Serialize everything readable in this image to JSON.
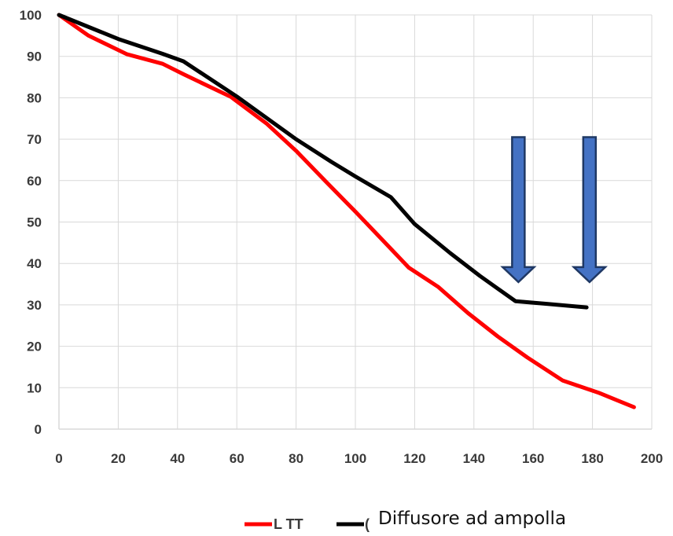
{
  "chart_data": {
    "type": "line",
    "title": "",
    "xlabel": "",
    "ylabel": "",
    "xlim": [
      0,
      200
    ],
    "ylim": [
      0,
      100
    ],
    "x_ticks": [
      0,
      20,
      40,
      60,
      80,
      100,
      120,
      140,
      160,
      180,
      200
    ],
    "y_ticks": [
      0,
      10,
      20,
      30,
      40,
      50,
      60,
      70,
      80,
      90,
      100
    ],
    "grid": true,
    "legend_position": "bottom",
    "series": [
      {
        "name": "L TT",
        "color": "#ff0000",
        "points": [
          [
            0,
            100
          ],
          [
            10,
            95
          ],
          [
            23,
            90.5
          ],
          [
            35,
            88.2
          ],
          [
            42,
            85.7
          ],
          [
            58,
            80.2
          ],
          [
            70,
            73.8
          ],
          [
            80,
            67.2
          ],
          [
            90,
            59.8
          ],
          [
            100,
            52.5
          ],
          [
            108,
            46.5
          ],
          [
            118,
            39
          ],
          [
            128,
            34.3
          ],
          [
            138,
            28
          ],
          [
            148,
            22.4
          ],
          [
            158,
            17.3
          ],
          [
            170,
            11.7
          ],
          [
            182,
            8.8
          ],
          [
            194,
            5.3
          ]
        ]
      },
      {
        "name": "(",
        "color": "#000000",
        "points": [
          [
            0,
            100
          ],
          [
            20,
            94.2
          ],
          [
            35,
            90.6
          ],
          [
            42,
            88.8
          ],
          [
            60,
            80.3
          ],
          [
            80,
            70
          ],
          [
            92,
            64.5
          ],
          [
            100,
            61
          ],
          [
            112,
            56
          ],
          [
            120,
            49.5
          ],
          [
            132,
            42.5
          ],
          [
            142,
            37
          ],
          [
            154,
            30.9
          ],
          [
            165,
            30.2
          ],
          [
            178,
            29.4
          ]
        ]
      }
    ],
    "annotations": [
      {
        "type": "down-arrow",
        "x": 155,
        "y_top": 70.5,
        "y_bottom": 35.5,
        "color": "#4472c4"
      },
      {
        "type": "down-arrow",
        "x": 179,
        "y_top": 70.5,
        "y_bottom": 35.5,
        "color": "#4472c4"
      }
    ],
    "legend_caption": "Diffusore ad ampolla"
  }
}
